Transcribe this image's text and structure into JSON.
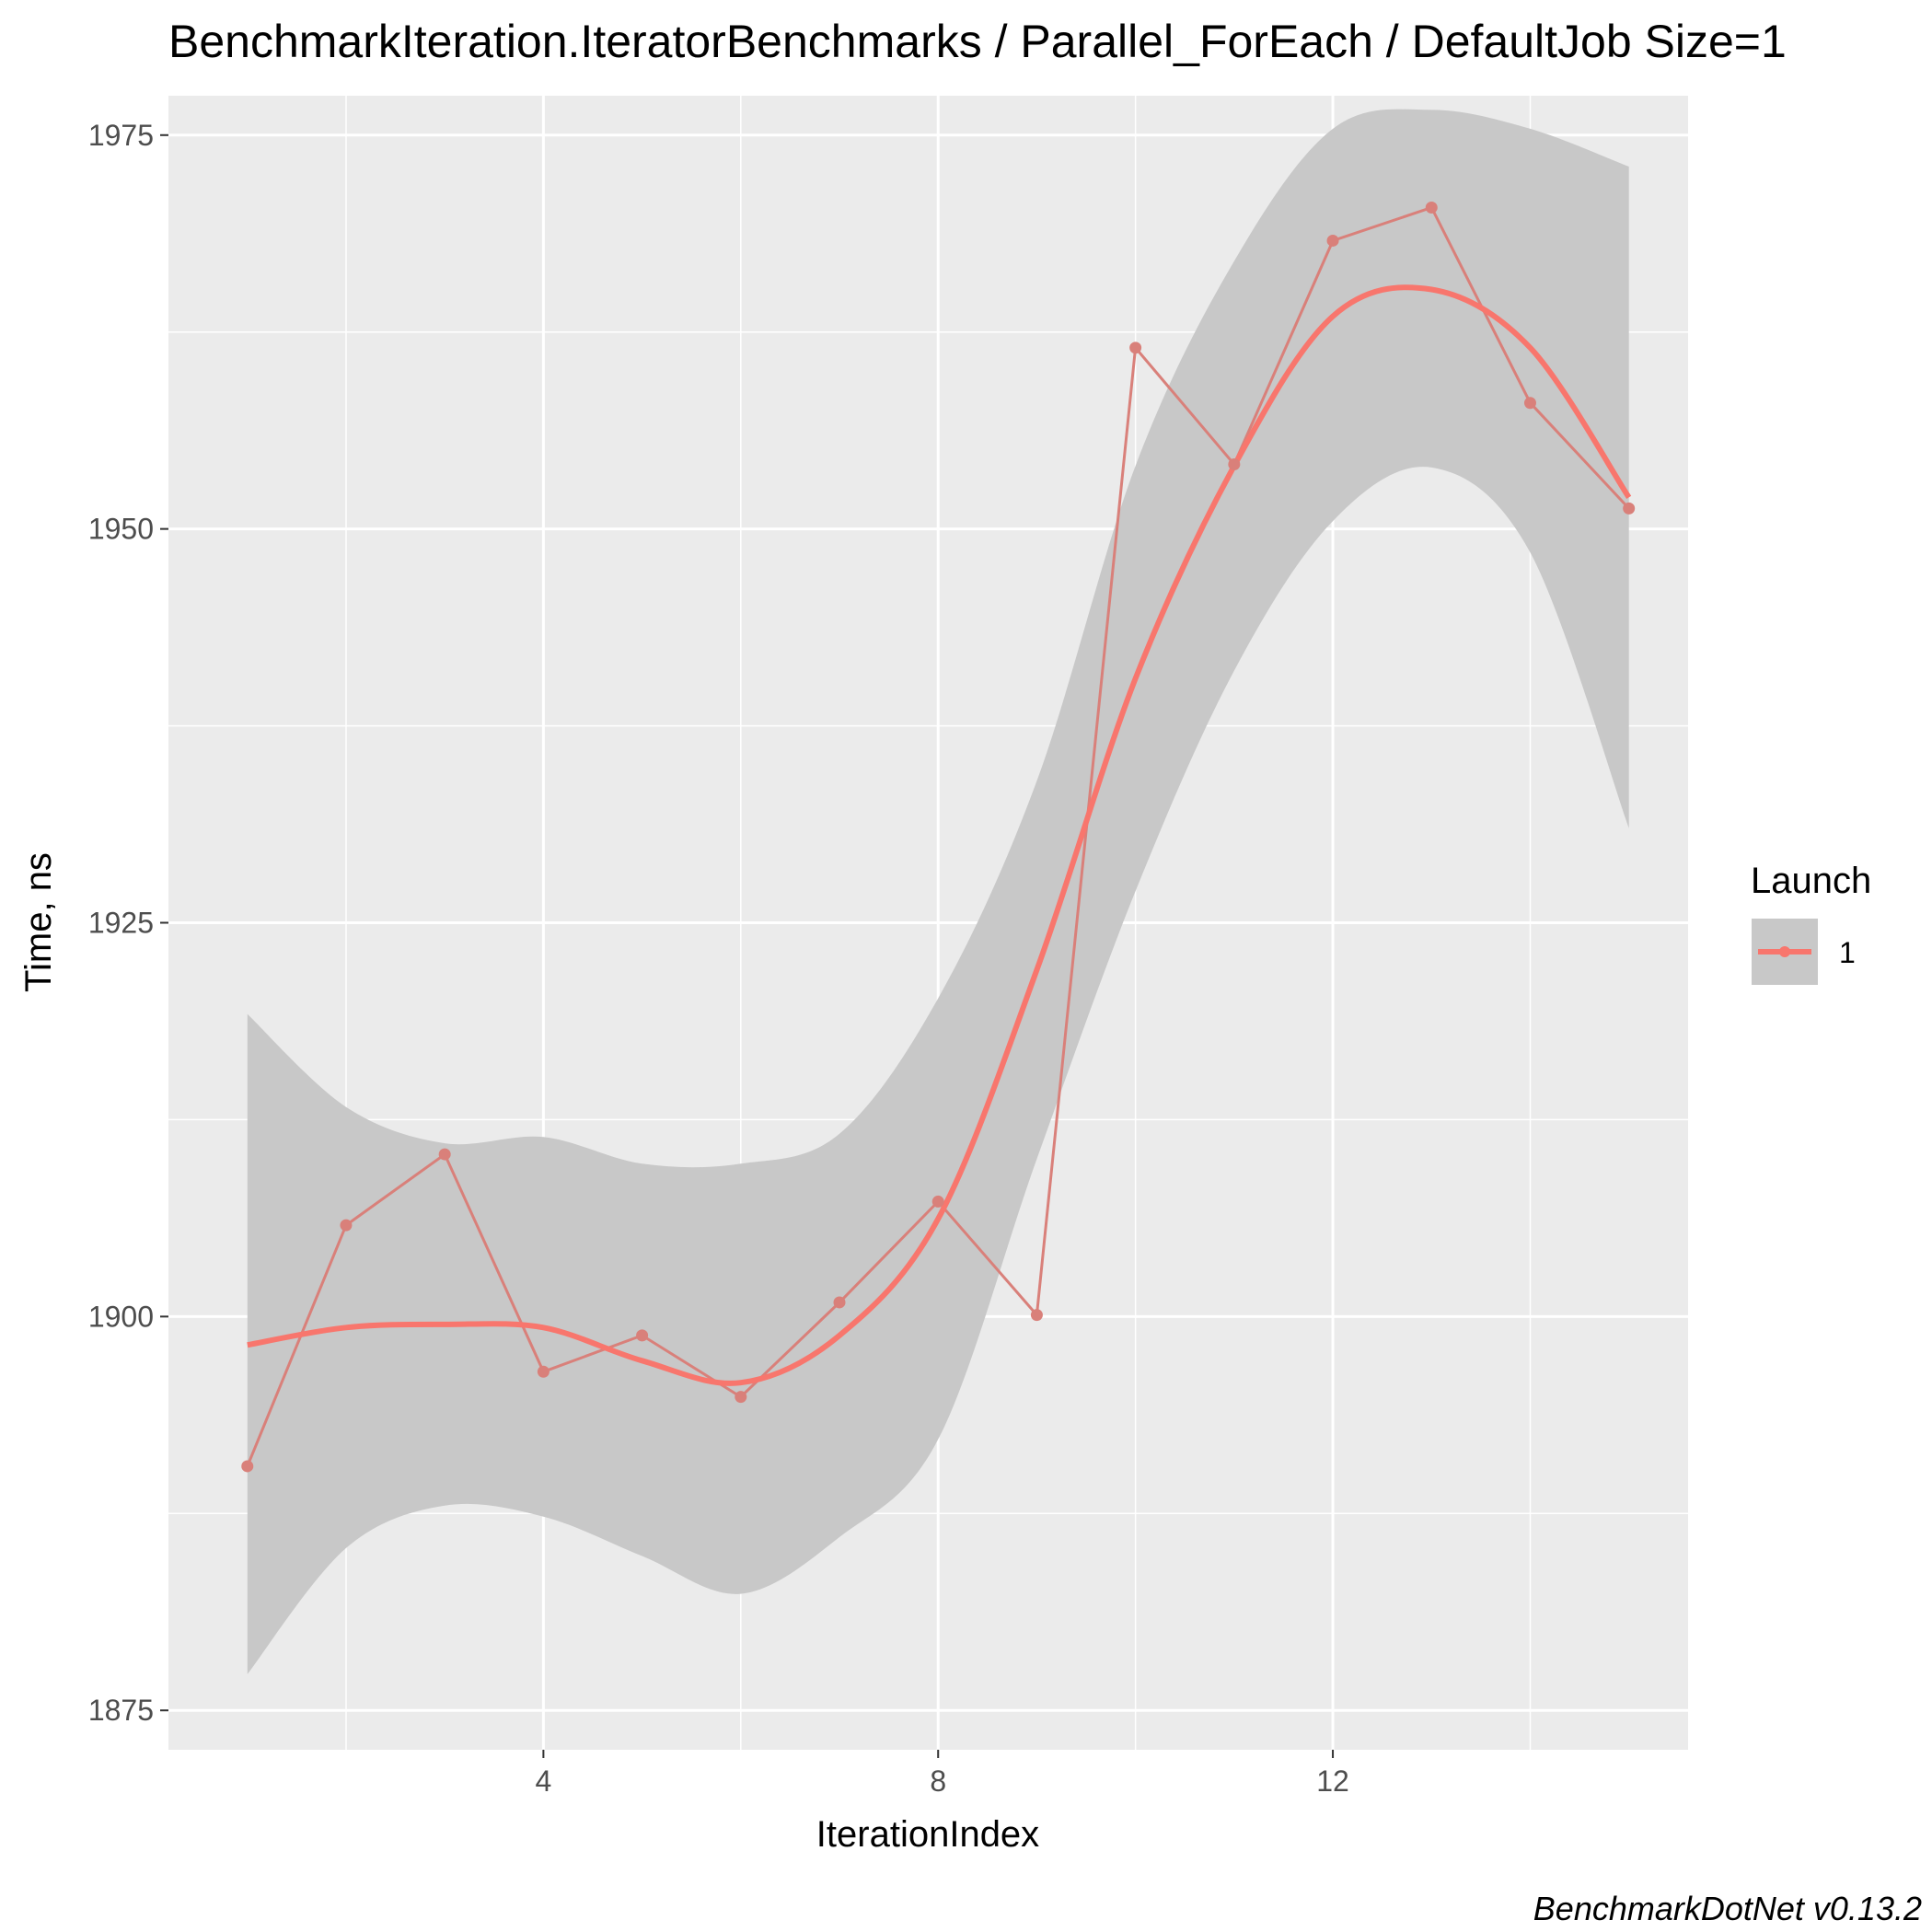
{
  "chart_data": {
    "type": "line",
    "title": "BenchmarkIteration.IteratorBenchmarks / Parallel_ForEach / DefaultJob Size=1",
    "xlabel": "IterationIndex",
    "ylabel": "Time, ns",
    "caption": "BenchmarkDotNet v0.13.2",
    "xlim": [
      0.2,
      15.6
    ],
    "ylim": [
      1872.5,
      1977.5
    ],
    "x_ticks": [
      4,
      8,
      12
    ],
    "x_tick_labels": [
      "4",
      "8",
      "12"
    ],
    "y_ticks": [
      1875,
      1900,
      1925,
      1950,
      1975
    ],
    "y_tick_labels": [
      "1875",
      "1900",
      "1925",
      "1950",
      "1975"
    ],
    "grid": true,
    "legend": {
      "title": "Launch",
      "position": "right",
      "entries": [
        "1"
      ]
    },
    "colors": {
      "series": "#F8766D",
      "series_muted": "#D9807A",
      "ribbon": "#C8C8C8",
      "panel": "#EBEBEB",
      "grid": "#FFFFFF"
    },
    "series": [
      {
        "name": "1",
        "x": [
          1,
          2,
          3,
          4,
          5,
          6,
          7,
          8,
          9,
          10,
          11,
          12,
          13,
          14,
          15
        ],
        "values": [
          1890.5,
          1905.8,
          1910.3,
          1896.5,
          1898.8,
          1894.9,
          1900.9,
          1907.3,
          1900.1,
          1961.5,
          1954.1,
          1968.3,
          1970.4,
          1958.0,
          1951.3
        ]
      }
    ],
    "smooth": {
      "x": [
        1,
        2,
        3,
        4,
        5,
        6,
        7,
        8,
        9,
        10,
        11,
        12,
        13,
        14,
        15
      ],
      "fit": [
        1898.2,
        1899.3,
        1899.5,
        1899.3,
        1897.2,
        1895.8,
        1898.8,
        1906.2,
        1922.0,
        1940.5,
        1954.0,
        1963.5,
        1965.2,
        1961.5,
        1952.0
      ],
      "lower": [
        1877.3,
        1885.3,
        1888.0,
        1887.3,
        1884.8,
        1882.4,
        1886.0,
        1892.2,
        1910.0,
        1927.0,
        1941.0,
        1950.5,
        1953.9,
        1948.5,
        1931.0
      ],
      "upper": [
        1919.2,
        1913.3,
        1911.0,
        1911.4,
        1909.7,
        1909.7,
        1911.6,
        1920.2,
        1934.0,
        1954.0,
        1967.0,
        1975.4,
        1976.6,
        1975.4,
        1973.0
      ]
    }
  }
}
